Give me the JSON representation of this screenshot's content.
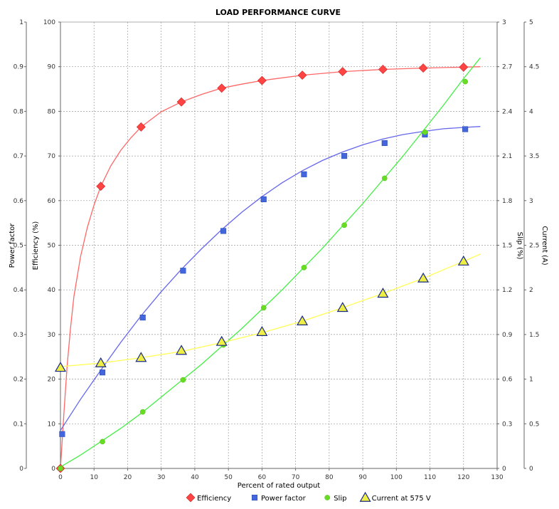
{
  "chart_data": {
    "type": "line",
    "title": "LOAD PERFORMANCE CURVE",
    "xlabel": "Percent of rated output",
    "xlim": [
      0,
      130
    ],
    "x_ticks": [
      "0",
      "10",
      "20",
      "30",
      "40",
      "50",
      "60",
      "70",
      "80",
      "90",
      "100",
      "110",
      "120",
      "130"
    ],
    "grid": true,
    "legend_position": "bottom",
    "axes": {
      "power_factor": {
        "label": "Power factor",
        "side": "left-outer",
        "range": [
          0,
          1
        ],
        "ticks": [
          "0",
          "0.1",
          "0.2",
          "0.3",
          "0.4",
          "0.5",
          "0.6",
          "0.7",
          "0.8",
          "0.9",
          "1"
        ]
      },
      "efficiency": {
        "label": "Efficiency (%)",
        "side": "left-inner",
        "range": [
          0,
          100
        ],
        "ticks": [
          "0",
          "10",
          "20",
          "30",
          "40",
          "50",
          "60",
          "70",
          "80",
          "90",
          "100"
        ]
      },
      "slip": {
        "label": "Slip (%)",
        "side": "right-inner",
        "range": [
          0,
          3
        ],
        "ticks": [
          "0",
          "0.3",
          "0.6",
          "0.9",
          "1.2",
          "1.5",
          "1.8",
          "2.1",
          "2.4",
          "2.7",
          "3"
        ]
      },
      "current": {
        "label": "Current (A)",
        "side": "right-outer",
        "range": [
          0,
          5
        ],
        "ticks": [
          "0",
          "0.5",
          "1",
          "1.5",
          "2",
          "2.5",
          "3",
          "3.5",
          "4",
          "4.5",
          "5"
        ]
      }
    },
    "series": [
      {
        "name": "Efficiency",
        "axis": "efficiency",
        "color": "#ff4444",
        "line_color": "#ff6666",
        "marker": "diamond",
        "points": [
          [
            0,
            0
          ],
          [
            12,
            63.2
          ],
          [
            24,
            76.5
          ],
          [
            36,
            82.1
          ],
          [
            48,
            85.2
          ],
          [
            60,
            86.9
          ],
          [
            72,
            88.1
          ],
          [
            84,
            88.9
          ],
          [
            96,
            89.4
          ],
          [
            108,
            89.7
          ],
          [
            120,
            89.9
          ]
        ],
        "curve": [
          [
            0,
            0
          ],
          [
            1,
            12
          ],
          [
            2,
            23
          ],
          [
            3,
            31.5
          ],
          [
            4,
            38.5
          ],
          [
            6,
            47.5
          ],
          [
            8,
            54
          ],
          [
            10,
            59
          ],
          [
            12,
            63.2
          ],
          [
            15,
            67.8
          ],
          [
            18,
            71.3
          ],
          [
            21,
            74.1
          ],
          [
            24,
            76.5
          ],
          [
            30,
            79.9
          ],
          [
            36,
            82.1
          ],
          [
            42,
            83.8
          ],
          [
            48,
            85.2
          ],
          [
            54,
            86.1
          ],
          [
            60,
            86.9
          ],
          [
            72,
            88.1
          ],
          [
            84,
            88.9
          ],
          [
            96,
            89.4
          ],
          [
            108,
            89.7
          ],
          [
            120,
            89.9
          ],
          [
            125,
            90
          ]
        ]
      },
      {
        "name": "Power factor",
        "axis": "power_factor",
        "color": "#4466dd",
        "line_color": "#6666ee",
        "marker": "square",
        "points": [
          [
            0.5,
            0.077
          ],
          [
            12.5,
            0.215
          ],
          [
            24.5,
            0.338
          ],
          [
            36.5,
            0.443
          ],
          [
            48.5,
            0.532
          ],
          [
            60.5,
            0.603
          ],
          [
            72.5,
            0.659
          ],
          [
            84.5,
            0.7
          ],
          [
            96.5,
            0.729
          ],
          [
            108.5,
            0.748
          ],
          [
            120.5,
            0.76
          ]
        ],
        "curve": [
          [
            0,
            0.085
          ],
          [
            6,
            0.155
          ],
          [
            12,
            0.22
          ],
          [
            18,
            0.283
          ],
          [
            24,
            0.342
          ],
          [
            30,
            0.396
          ],
          [
            36,
            0.446
          ],
          [
            42,
            0.492
          ],
          [
            48,
            0.535
          ],
          [
            54,
            0.574
          ],
          [
            60,
            0.609
          ],
          [
            66,
            0.64
          ],
          [
            72,
            0.667
          ],
          [
            78,
            0.69
          ],
          [
            84,
            0.709
          ],
          [
            90,
            0.725
          ],
          [
            96,
            0.738
          ],
          [
            102,
            0.748
          ],
          [
            108,
            0.755
          ],
          [
            114,
            0.761
          ],
          [
            120,
            0.764
          ],
          [
            125,
            0.766
          ]
        ]
      },
      {
        "name": "Slip",
        "axis": "slip",
        "color": "#66dd22",
        "line_color": "#44ee44",
        "marker": "circle",
        "points": [
          [
            0,
            0
          ],
          [
            12.5,
            0.18
          ],
          [
            24.5,
            0.38
          ],
          [
            36.5,
            0.595
          ],
          [
            48.5,
            0.83
          ],
          [
            60.5,
            1.08
          ],
          [
            72.5,
            1.35
          ],
          [
            84.5,
            1.635
          ],
          [
            96.5,
            1.95
          ],
          [
            108.5,
            2.26
          ],
          [
            120.5,
            2.6
          ]
        ],
        "curve": [
          [
            0,
            0.01
          ],
          [
            6,
            0.09
          ],
          [
            12,
            0.18
          ],
          [
            18,
            0.27
          ],
          [
            24,
            0.37
          ],
          [
            30,
            0.48
          ],
          [
            36,
            0.59
          ],
          [
            42,
            0.7
          ],
          [
            48,
            0.82
          ],
          [
            54,
            0.94
          ],
          [
            60,
            1.07
          ],
          [
            66,
            1.2
          ],
          [
            72,
            1.34
          ],
          [
            78,
            1.48
          ],
          [
            84,
            1.63
          ],
          [
            90,
            1.78
          ],
          [
            96,
            1.94
          ],
          [
            102,
            2.1
          ],
          [
            108,
            2.27
          ],
          [
            114,
            2.44
          ],
          [
            120,
            2.62
          ],
          [
            125,
            2.76
          ]
        ]
      },
      {
        "name": "Current at 575 V",
        "axis": "current",
        "color": "#eeee44",
        "line_color": "#ffff55",
        "marker": "triangle",
        "points": [
          [
            0,
            1.13
          ],
          [
            12,
            1.18
          ],
          [
            24,
            1.24
          ],
          [
            36,
            1.32
          ],
          [
            48,
            1.42
          ],
          [
            60,
            1.53
          ],
          [
            72,
            1.65
          ],
          [
            84,
            1.8
          ],
          [
            96,
            1.96
          ],
          [
            108,
            2.13
          ],
          [
            120,
            2.32
          ]
        ],
        "curve": [
          [
            0,
            1.14
          ],
          [
            12,
            1.18
          ],
          [
            24,
            1.24
          ],
          [
            36,
            1.31
          ],
          [
            48,
            1.41
          ],
          [
            60,
            1.52
          ],
          [
            72,
            1.65
          ],
          [
            84,
            1.8
          ],
          [
            96,
            1.96
          ],
          [
            108,
            2.13
          ],
          [
            120,
            2.32
          ],
          [
            125,
            2.4
          ]
        ]
      }
    ]
  }
}
